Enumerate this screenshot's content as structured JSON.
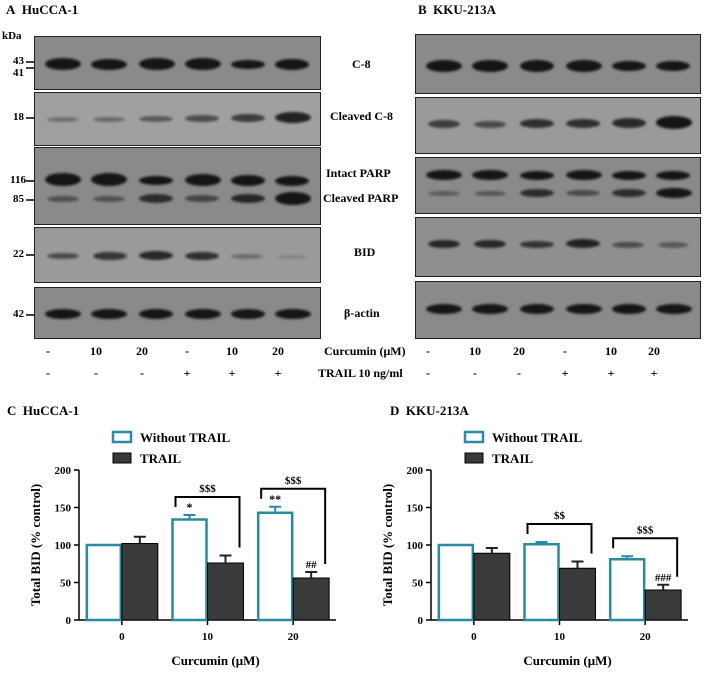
{
  "figure": {
    "panel_a": {
      "letter": "A",
      "title": "HuCCA-1"
    },
    "panel_b": {
      "letter": "B",
      "title": "KKU-213A"
    },
    "panel_c": {
      "letter": "C",
      "title": "HuCCA-1"
    },
    "panel_d": {
      "letter": "D",
      "title": "KKU-213A"
    },
    "kda_label": "kDa",
    "markers": {
      "m43": "43",
      "m41": "41",
      "m18": "18",
      "m116": "116",
      "m85": "85",
      "m22": "22",
      "m42": "42"
    },
    "blot_labels": {
      "c8": "C-8",
      "cleaved_c8": "Cleaved C-8",
      "intact_parp": "Intact PARP",
      "cleaved_parp": "Cleaved PARP",
      "bid": "BID",
      "actin": "β-actin"
    },
    "treatments": {
      "curcumin_label": "Curcumin (μM)",
      "trail_label": "TRAIL 10 ng/ml",
      "curcumin": [
        "-",
        "10",
        "20",
        "-",
        "10",
        "20"
      ],
      "trail": [
        "-",
        "-",
        "-",
        "+",
        "+",
        "+"
      ]
    },
    "legend": {
      "without": "Without TRAIL",
      "trail": "TRAIL"
    },
    "colors": {
      "without_border": "#2a8aa0",
      "trail_fill": "#3a3a3a",
      "blot_bg": "#8a8a8a"
    }
  },
  "chart_data": [
    {
      "type": "bar",
      "title": "HuCCA-1",
      "categories": [
        "0",
        "10",
        "20"
      ],
      "series": [
        {
          "name": "Without TRAIL",
          "values": [
            100,
            134,
            143
          ],
          "errors": [
            0,
            6,
            8
          ],
          "annotations": [
            "",
            "*",
            "**"
          ]
        },
        {
          "name": "TRAIL",
          "values": [
            102,
            76,
            56
          ],
          "errors": [
            9,
            10,
            8
          ],
          "annotations": [
            "",
            "",
            "##"
          ]
        }
      ],
      "brackets": [
        "",
        "$$$",
        "$$$"
      ],
      "xlabel": "Curcumin (μM)",
      "ylabel": "Total BID (% control)",
      "ylim": [
        0,
        200
      ],
      "yticks": [
        0,
        50,
        100,
        150,
        200
      ]
    },
    {
      "type": "bar",
      "title": "KKU-213A",
      "categories": [
        "0",
        "10",
        "20"
      ],
      "series": [
        {
          "name": "Without TRAIL",
          "values": [
            100,
            101,
            81
          ],
          "errors": [
            0,
            3,
            4
          ],
          "annotations": [
            "",
            "",
            ""
          ]
        },
        {
          "name": "TRAIL",
          "values": [
            89,
            69,
            40
          ],
          "errors": [
            7,
            9,
            7
          ],
          "annotations": [
            "",
            "",
            "###"
          ]
        }
      ],
      "brackets": [
        "",
        "$$",
        "$$$"
      ],
      "xlabel": "Curcumin (μM)",
      "ylabel": "Total BID (% control)",
      "ylim": [
        0,
        200
      ],
      "yticks": [
        0,
        50,
        100,
        150,
        200
      ]
    }
  ]
}
